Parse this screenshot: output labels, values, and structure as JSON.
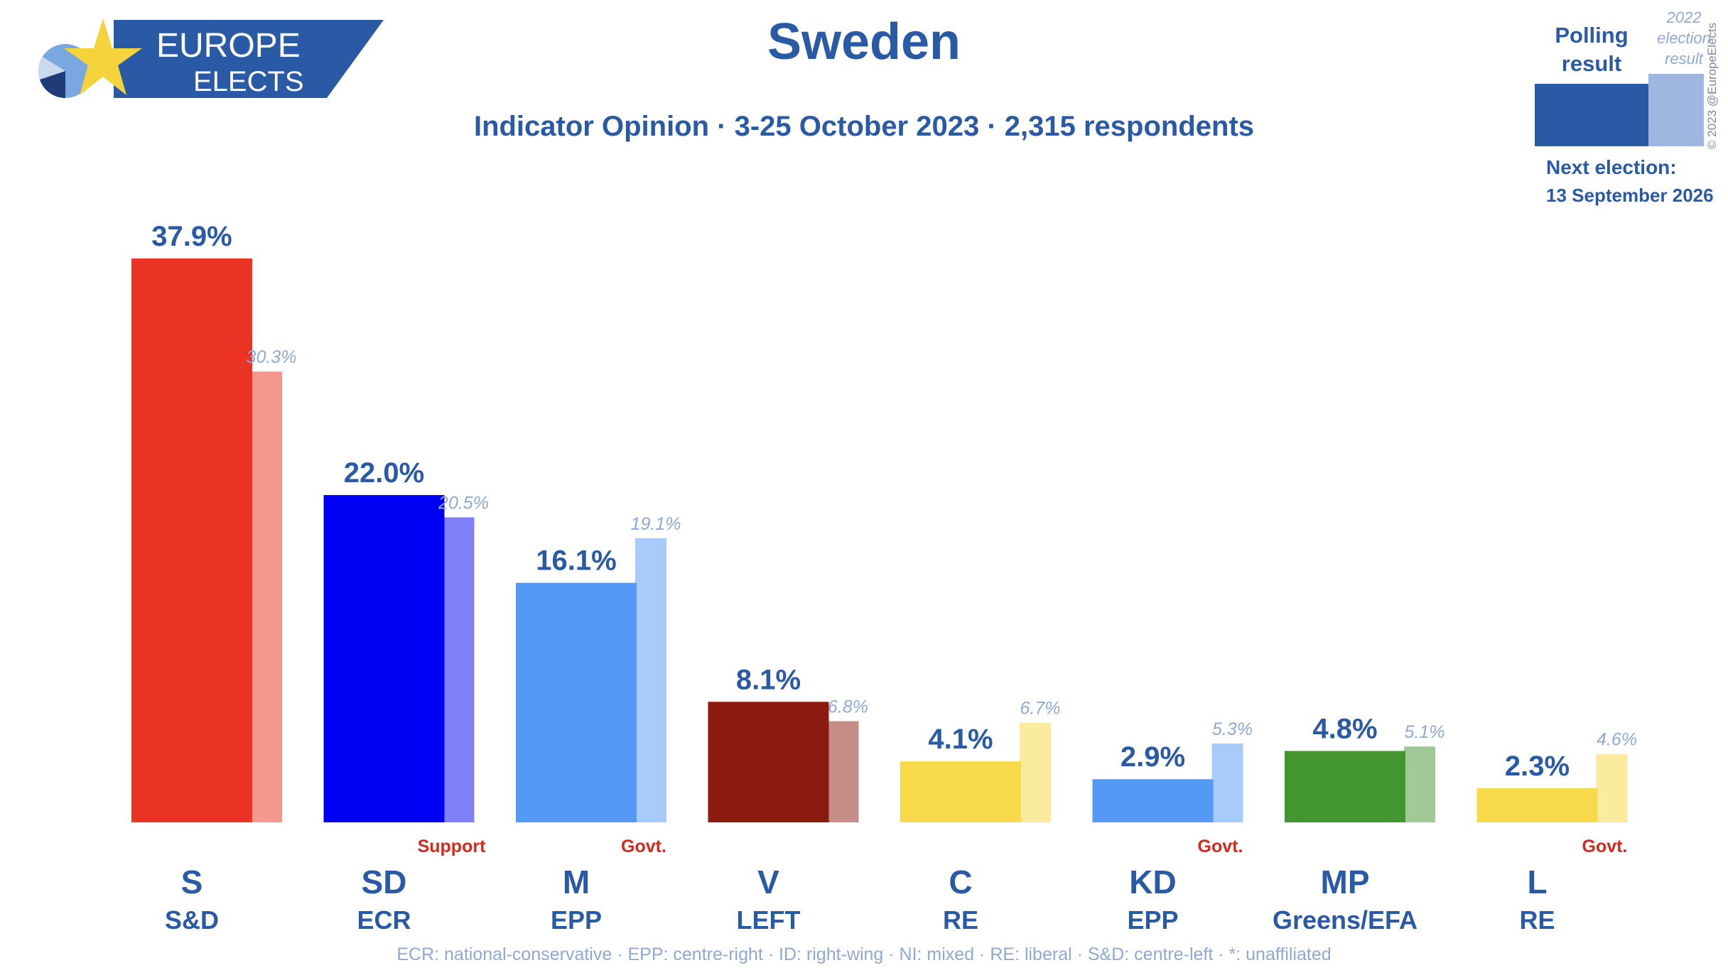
{
  "brand": {
    "line1": "EUROPE",
    "line2": "ELECTS",
    "colors": {
      "banner": "#2a5aa5",
      "star": "#f5d33a",
      "pie1": "#7aa7e0",
      "pie2": "#1f3b78",
      "pie3": "#c9d9f0"
    }
  },
  "header": {
    "title": "Sweden",
    "subtitle": "Indicator Opinion · 3-25 October 2023 · 2,315 respondents"
  },
  "legend": {
    "polling_label_1": "Polling",
    "polling_label_2": "result",
    "election_label_1": "2022",
    "election_label_2": "election",
    "election_label_3": "result",
    "next_election_label": "Next election:",
    "next_election_date": "13 September 2026"
  },
  "copyright": "© 2023 @EuropeElects",
  "footer": "ECR: national-conservative · EPP: centre-right · ID: right-wing · NI: mixed · RE: liberal · S&D: centre-left · *: unaffiliated",
  "chart_data": {
    "type": "bar",
    "categories": [
      "S",
      "SD",
      "M",
      "V",
      "C",
      "KD",
      "MP",
      "L"
    ],
    "groups": [
      "S&D",
      "ECR",
      "EPP",
      "LEFT",
      "RE",
      "EPP",
      "Greens/EFA",
      "RE"
    ],
    "roles": [
      "",
      "Support",
      "Govt.",
      "",
      "",
      "Govt.",
      "",
      "Govt."
    ],
    "series": [
      {
        "values": [
          37.9,
          22.0,
          16.1,
          8.1,
          4.1,
          2.9,
          4.8,
          2.3
        ]
      },
      {
        "values": [
          30.3,
          20.5,
          19.1,
          6.8,
          6.7,
          5.3,
          5.1,
          4.6
        ]
      }
    ],
    "poll_labels": [
      "37.9%",
      "22.0%",
      "16.1%",
      "8.1%",
      "4.1%",
      "2.9%",
      "4.8%",
      "2.3%"
    ],
    "election_labels": [
      "30.3%",
      "20.5%",
      "19.1%",
      "6.8%",
      "6.7%",
      "5.3%",
      "5.1%",
      "4.6%"
    ],
    "poll_colors": [
      "#ea3323",
      "#0000f5",
      "#5599f7",
      "#8b1a10",
      "#f7d94c",
      "#5599f7",
      "#43962f",
      "#f7d94c"
    ],
    "election_colors": [
      "#f3978f",
      "#8080fa",
      "#a9cbfb",
      "#c48d87",
      "#fbeb9f",
      "#a9cbfb",
      "#a0c997",
      "#fbeb9f"
    ],
    "ylim": [
      0,
      40
    ]
  }
}
